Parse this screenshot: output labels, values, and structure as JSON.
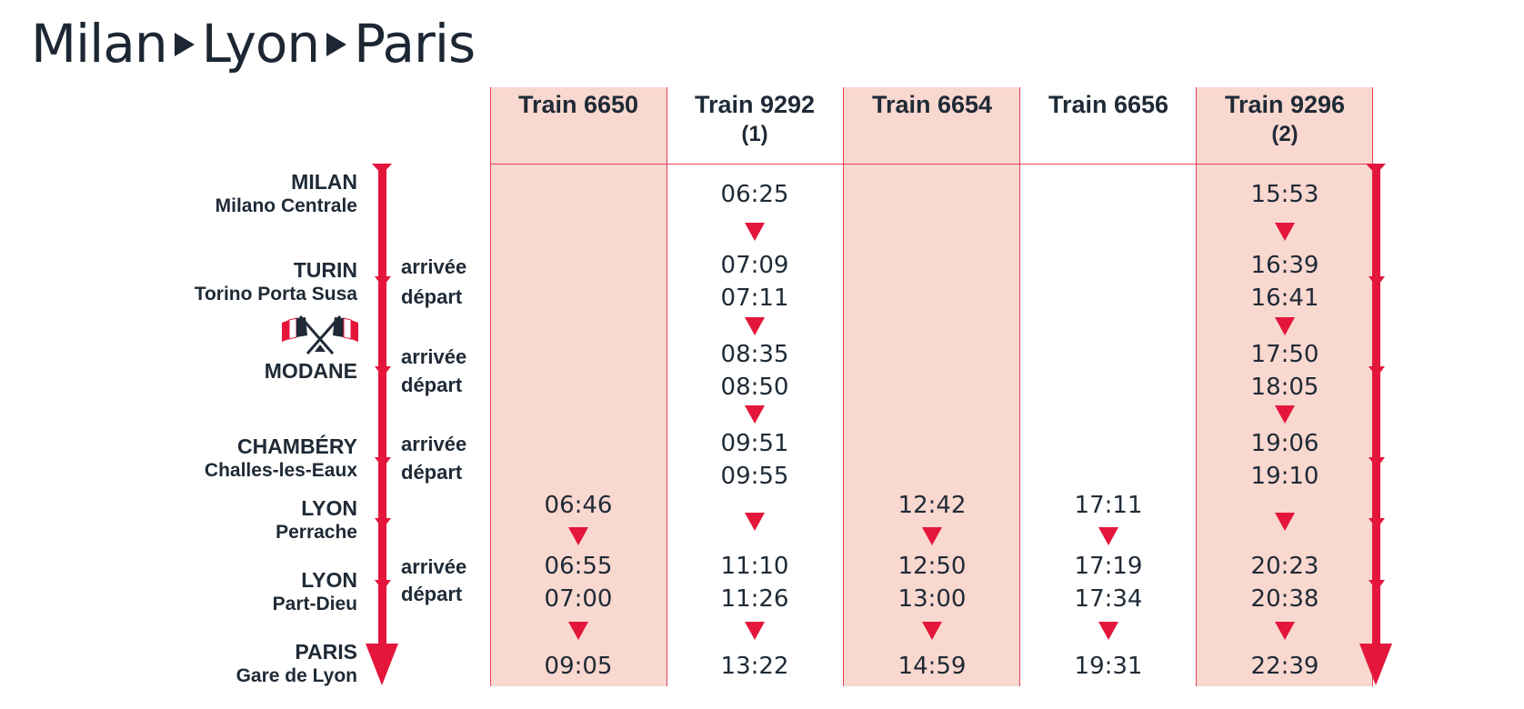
{
  "title": {
    "from": "Milan",
    "via": "Lyon",
    "to": "Paris"
  },
  "trains": [
    {
      "name": "Train 6650",
      "note": ""
    },
    {
      "name": "Train 9292",
      "note": "(1)"
    },
    {
      "name": "Train 6654",
      "note": ""
    },
    {
      "name": "Train 6656",
      "note": ""
    },
    {
      "name": "Train 9296",
      "note": "(2)"
    }
  ],
  "stations": [
    {
      "city": "MILAN",
      "sub": "Milano Centrale"
    },
    {
      "city": "TURIN",
      "sub": "Torino Porta Susa"
    },
    {
      "city": "MODANE",
      "sub": ""
    },
    {
      "city": "CHAMBÉRY",
      "sub": "Challes-les-Eaux"
    },
    {
      "city": "LYON",
      "sub": "Perrache"
    },
    {
      "city": "LYON",
      "sub": "Part-Dieu"
    },
    {
      "city": "PARIS",
      "sub": "Gare de Lyon"
    }
  ],
  "labels": {
    "arrival": "arrivée",
    "departure": "départ"
  },
  "times": {
    "t6650": [
      "06:46",
      "06:55",
      "07:00",
      "09:05"
    ],
    "t9292": [
      "06:25",
      "07:09",
      "07:11",
      "08:35",
      "08:50",
      "09:51",
      "09:55",
      "11:10",
      "11:26",
      "13:22"
    ],
    "t6654": [
      "12:42",
      "12:50",
      "13:00",
      "14:59"
    ],
    "t6656": [
      "17:11",
      "17:19",
      "17:34",
      "19:31"
    ],
    "t9296": [
      "15:53",
      "16:39",
      "16:41",
      "17:50",
      "18:05",
      "19:06",
      "19:10",
      "20:23",
      "20:38",
      "22:39"
    ]
  },
  "colors": {
    "accent": "#e4163b",
    "highlight": "#f9d8d0",
    "text": "#1f2a36"
  },
  "icons": {
    "border": "flags-icon"
  }
}
